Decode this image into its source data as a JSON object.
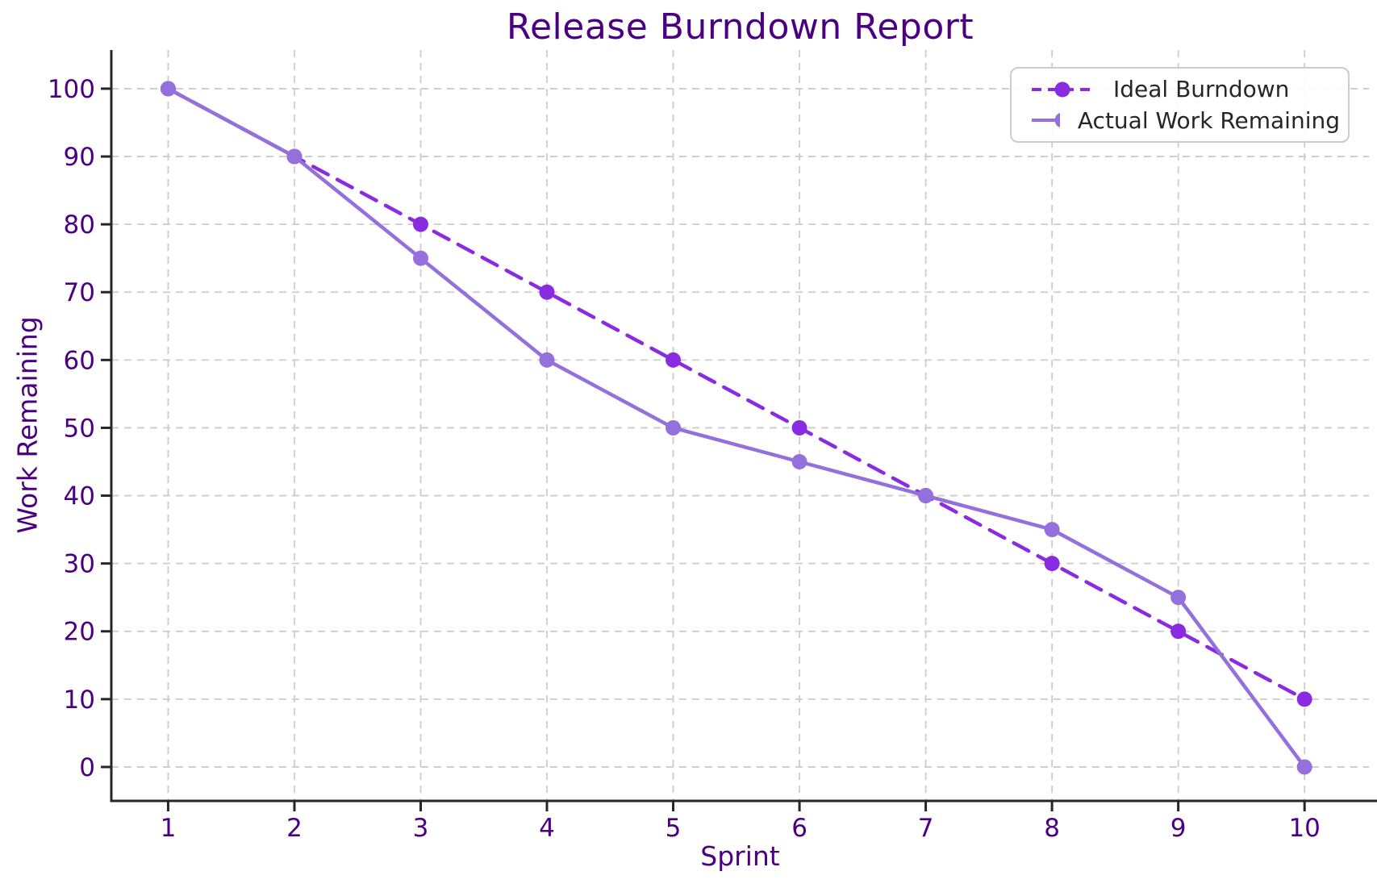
{
  "chart_data": {
    "type": "line",
    "title": "Release Burndown Report",
    "xlabel": "Sprint",
    "ylabel": "Work Remaining",
    "x": [
      1,
      2,
      3,
      4,
      5,
      6,
      7,
      8,
      9,
      10
    ],
    "series": [
      {
        "name": "Ideal Burndown",
        "values": [
          100,
          90,
          80,
          70,
          60,
          50,
          40,
          30,
          20,
          10
        ],
        "color": "#8a2be2",
        "line_style": "dashed",
        "marker": "circle"
      },
      {
        "name": "Actual Work Remaining",
        "values": [
          100,
          90,
          75,
          60,
          50,
          45,
          40,
          35,
          25,
          0
        ],
        "color": "#9370db",
        "line_style": "solid",
        "marker": "circle"
      }
    ],
    "x_ticks": [
      1,
      2,
      3,
      4,
      5,
      6,
      7,
      8,
      9,
      10
    ],
    "y_ticks": [
      0,
      10,
      20,
      30,
      40,
      50,
      60,
      70,
      80,
      90,
      100
    ],
    "xlim": [
      0.55,
      10.51
    ],
    "ylim": [
      -5,
      105.7
    ],
    "grid": true,
    "grid_style": "dashed",
    "legend_position": "upper right",
    "colors": {
      "title": "#4b0082",
      "tick_labels": "#4b0082",
      "axis_labels": "#4b0082",
      "legend_text": "#262626",
      "grid": "#cccccc",
      "spine": "#262626",
      "background": "#ffffff"
    }
  }
}
